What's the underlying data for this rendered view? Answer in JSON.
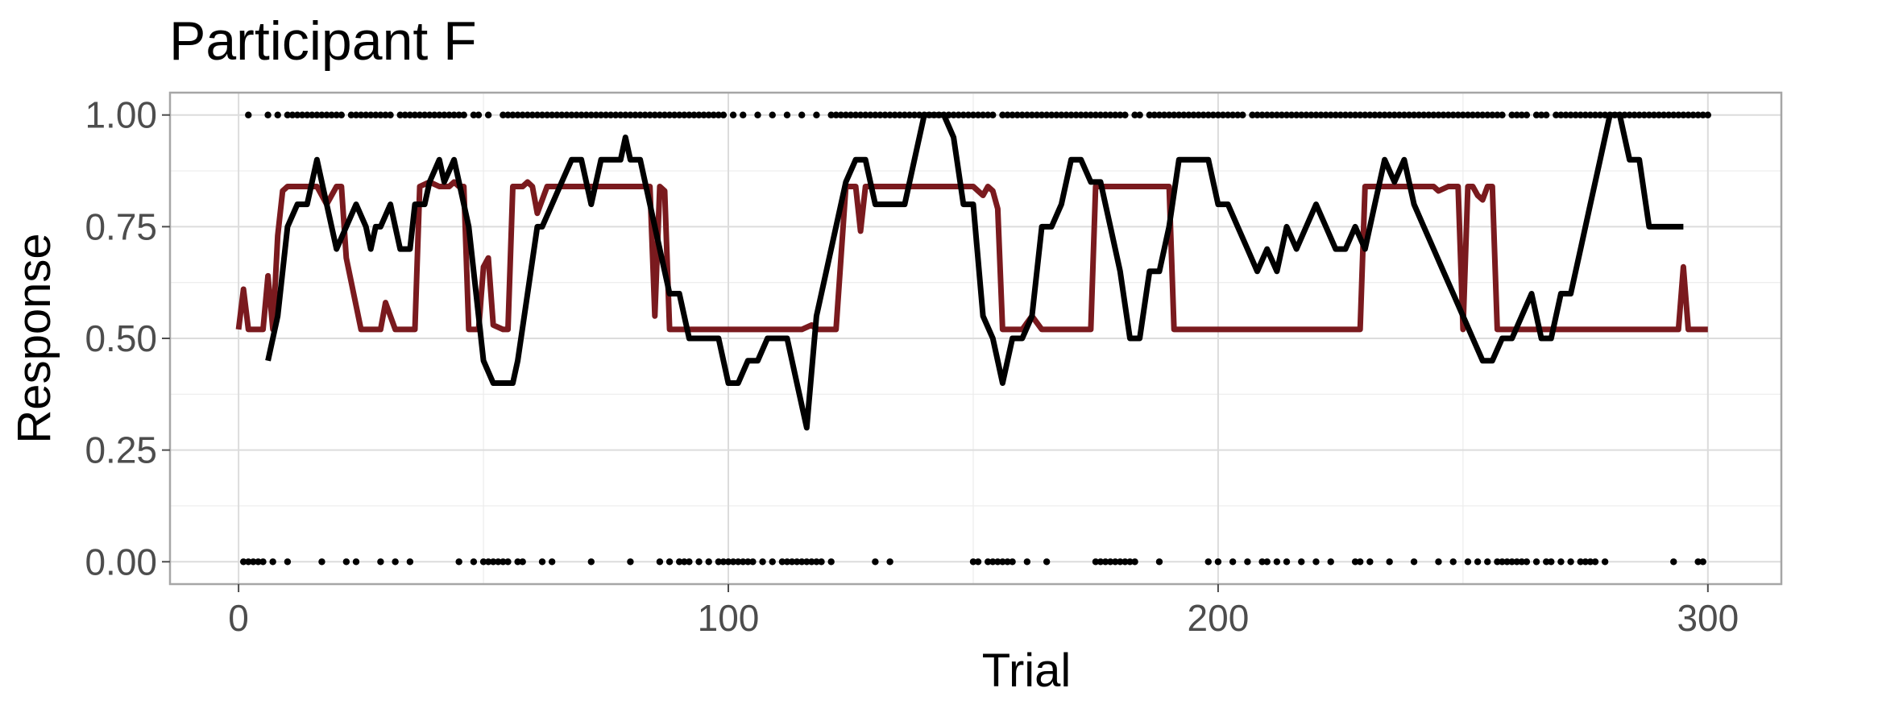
{
  "chart_data": {
    "type": "line",
    "title": "Participant F",
    "xlabel": "Trial",
    "ylabel": "Response",
    "xlim": [
      -14,
      315
    ],
    "ylim": [
      -0.05,
      1.05
    ],
    "x_ticks": [
      0,
      100,
      200,
      300
    ],
    "x_tick_labels": [
      "0",
      "100",
      "200",
      "300"
    ],
    "y_ticks": [
      0,
      0.25,
      0.5,
      0.75,
      1
    ],
    "y_tick_labels": [
      "0.00",
      "0.25",
      "0.50",
      "0.75",
      "1.00"
    ],
    "grid": true,
    "colors": {
      "model": "#7a1a1e",
      "rolling": "#000000",
      "points": "#000000",
      "grid": "#dcdcdc",
      "panel_border": "#a6a6a6"
    },
    "series": [
      {
        "type": "line",
        "x": [
          0,
          1,
          2,
          3,
          5,
          6,
          7,
          8,
          9,
          10,
          12,
          14,
          16,
          17,
          18,
          20,
          21,
          22,
          25,
          27,
          28,
          29,
          30,
          32,
          33,
          34,
          36,
          37,
          39,
          41,
          43,
          44,
          45,
          46,
          47,
          49,
          50,
          51,
          52,
          54,
          55,
          56,
          58,
          59,
          60,
          61,
          63,
          66,
          70,
          74,
          78,
          80,
          82,
          84,
          85,
          86,
          87,
          88,
          90,
          92,
          94,
          96,
          98,
          100,
          110,
          115,
          117,
          118,
          121,
          122,
          124,
          125,
          126,
          127,
          128,
          130,
          140,
          145,
          148,
          150,
          151,
          152,
          153,
          154,
          155,
          156,
          160,
          162,
          164,
          170,
          174,
          175,
          176,
          178,
          180,
          185,
          190,
          191,
          193,
          197,
          198,
          200,
          202,
          204,
          206,
          207,
          208,
          210,
          215,
          225,
          229,
          230,
          231,
          232,
          235,
          237,
          240,
          242,
          244,
          245,
          247,
          249,
          250,
          251,
          252,
          253,
          254,
          255,
          256,
          257,
          260,
          265,
          270,
          271,
          274,
          275,
          276,
          278,
          279,
          280,
          285,
          290,
          293,
          294,
          295,
          296,
          297,
          298,
          299,
          300
        ],
        "y": [
          0.52,
          0.61,
          0.52,
          0.52,
          0.52,
          0.64,
          0.52,
          0.73,
          0.83,
          0.84,
          0.84,
          0.84,
          0.84,
          0.82,
          0.8,
          0.84,
          0.84,
          0.68,
          0.52,
          0.52,
          0.52,
          0.52,
          0.58,
          0.52,
          0.52,
          0.52,
          0.52,
          0.84,
          0.85,
          0.84,
          0.84,
          0.85,
          0.84,
          0.84,
          0.52,
          0.52,
          0.66,
          0.68,
          0.53,
          0.52,
          0.52,
          0.84,
          0.84,
          0.85,
          0.84,
          0.78,
          0.84,
          0.84,
          0.84,
          0.84,
          0.84,
          0.84,
          0.84,
          0.84,
          0.55,
          0.84,
          0.83,
          0.52,
          0.52,
          0.52,
          0.52,
          0.52,
          0.52,
          0.52,
          0.52,
          0.52,
          0.53,
          0.52,
          0.52,
          0.52,
          0.84,
          0.84,
          0.84,
          0.74,
          0.84,
          0.84,
          0.84,
          0.84,
          0.84,
          0.84,
          0.83,
          0.82,
          0.84,
          0.83,
          0.79,
          0.52,
          0.52,
          0.55,
          0.52,
          0.52,
          0.52,
          0.84,
          0.84,
          0.84,
          0.84,
          0.84,
          0.84,
          0.52,
          0.52,
          0.52,
          0.52,
          0.52,
          0.52,
          0.52,
          0.52,
          0.52,
          0.52,
          0.52,
          0.52,
          0.52,
          0.52,
          0.84,
          0.84,
          0.84,
          0.84,
          0.84,
          0.84,
          0.84,
          0.84,
          0.83,
          0.84,
          0.84,
          0.52,
          0.84,
          0.84,
          0.82,
          0.81,
          0.84,
          0.84,
          0.52,
          0.52,
          0.52,
          0.52,
          0.52,
          0.52,
          0.52,
          0.52,
          0.52,
          0.52,
          0.52,
          0.52,
          0.52,
          0.52,
          0.52,
          0.66,
          0.52,
          0.52,
          0.52,
          0.52,
          0.52
        ]
      },
      {
        "type": "line",
        "x": [
          6,
          8,
          10,
          12,
          14,
          16,
          18,
          20,
          22,
          24,
          26,
          27,
          28,
          29,
          31,
          32,
          33,
          35,
          36,
          38,
          39,
          41,
          42,
          44,
          45,
          47,
          48,
          50,
          52,
          54,
          56,
          57,
          59,
          61,
          62,
          64,
          66,
          68,
          70,
          72,
          74,
          76,
          78,
          79,
          80,
          82,
          84,
          86,
          88,
          90,
          92,
          94,
          96,
          98,
          100,
          102,
          104,
          106,
          108,
          110,
          112,
          114,
          116,
          118,
          120,
          122,
          124,
          126,
          128,
          130,
          132,
          134,
          136,
          138,
          140,
          142,
          144,
          146,
          148,
          150,
          152,
          154,
          156,
          158,
          160,
          162,
          164,
          166,
          168,
          170,
          172,
          174,
          176,
          178,
          180,
          182,
          184,
          186,
          188,
          190,
          192,
          194,
          196,
          198,
          200,
          202,
          204,
          206,
          208,
          210,
          212,
          214,
          216,
          218,
          220,
          222,
          224,
          226,
          228,
          230,
          232,
          234,
          236,
          238,
          240,
          242,
          244,
          246,
          248,
          250,
          252,
          254,
          256,
          258,
          260,
          262,
          264,
          266,
          268,
          270,
          272,
          274,
          276,
          278,
          280,
          282,
          284,
          286,
          288,
          290,
          292,
          294,
          295
        ],
        "y": [
          0.45,
          0.55,
          0.75,
          0.8,
          0.8,
          0.9,
          0.8,
          0.7,
          0.75,
          0.8,
          0.75,
          0.7,
          0.75,
          0.75,
          0.8,
          0.75,
          0.7,
          0.7,
          0.8,
          0.8,
          0.85,
          0.9,
          0.85,
          0.9,
          0.85,
          0.75,
          0.65,
          0.45,
          0.4,
          0.4,
          0.4,
          0.45,
          0.6,
          0.75,
          0.75,
          0.8,
          0.85,
          0.9,
          0.9,
          0.8,
          0.9,
          0.9,
          0.9,
          0.95,
          0.9,
          0.9,
          0.8,
          0.7,
          0.6,
          0.6,
          0.5,
          0.5,
          0.5,
          0.5,
          0.4,
          0.4,
          0.45,
          0.45,
          0.5,
          0.5,
          0.5,
          0.4,
          0.3,
          0.55,
          0.65,
          0.75,
          0.85,
          0.9,
          0.9,
          0.8,
          0.8,
          0.8,
          0.8,
          0.9,
          1.0,
          1.0,
          1.0,
          0.95,
          0.8,
          0.8,
          0.55,
          0.5,
          0.4,
          0.5,
          0.5,
          0.55,
          0.75,
          0.75,
          0.8,
          0.9,
          0.9,
          0.85,
          0.85,
          0.75,
          0.65,
          0.5,
          0.5,
          0.65,
          0.65,
          0.75,
          0.9,
          0.9,
          0.9,
          0.9,
          0.8,
          0.8,
          0.75,
          0.7,
          0.65,
          0.7,
          0.65,
          0.75,
          0.7,
          0.75,
          0.8,
          0.75,
          0.7,
          0.7,
          0.75,
          0.7,
          0.8,
          0.9,
          0.85,
          0.9,
          0.8,
          0.75,
          0.7,
          0.65,
          0.6,
          0.55,
          0.5,
          0.45,
          0.45,
          0.5,
          0.5,
          0.55,
          0.6,
          0.5,
          0.5,
          0.6,
          0.6,
          0.7,
          0.8,
          0.9,
          1.0,
          1.0,
          0.9,
          0.9,
          0.75,
          0.75,
          0.75,
          0.75,
          0.75
        ]
      },
      {
        "type": "scatter",
        "points_y1_x": [
          2,
          6,
          8,
          10,
          11,
          12,
          13,
          14,
          15,
          16,
          17,
          18,
          19,
          20,
          21,
          23,
          24,
          25,
          26,
          27,
          28,
          29,
          30,
          31,
          33,
          34,
          35,
          36,
          37,
          38,
          39,
          40,
          41,
          42,
          43,
          44,
          45,
          46,
          48,
          49,
          51,
          54,
          55,
          56,
          57,
          58,
          59,
          60,
          61,
          62,
          63,
          64,
          65,
          66,
          67,
          68,
          69,
          70,
          71,
          72,
          73,
          74,
          75,
          76,
          77,
          78,
          79,
          80,
          81,
          82,
          83,
          84,
          85,
          86,
          87,
          88,
          89,
          90,
          91,
          92,
          93,
          94,
          95,
          96,
          97,
          98,
          99,
          101,
          103,
          106,
          109,
          112,
          115,
          118,
          121,
          122,
          123,
          124,
          125,
          126,
          127,
          128,
          129,
          130,
          131,
          132,
          133,
          134,
          135,
          136,
          137,
          138,
          139,
          140,
          141,
          142,
          143,
          144,
          145,
          146,
          147,
          148,
          149,
          150,
          151,
          152,
          153,
          154,
          156,
          157,
          158,
          159,
          160,
          161,
          162,
          163,
          164,
          165,
          166,
          167,
          168,
          169,
          170,
          171,
          172,
          173,
          174,
          175,
          176,
          177,
          178,
          179,
          180,
          181,
          183,
          184,
          186,
          187,
          188,
          189,
          190,
          191,
          192,
          193,
          194,
          195,
          196,
          197,
          198,
          199,
          200,
          201,
          202,
          203,
          204,
          205,
          207,
          208,
          209,
          210,
          211,
          212,
          213,
          214,
          215,
          216,
          217,
          218,
          219,
          220,
          221,
          222,
          223,
          224,
          225,
          226,
          227,
          228,
          229,
          230,
          231,
          232,
          233,
          234,
          235,
          236,
          237,
          238,
          239,
          240,
          241,
          242,
          243,
          244,
          245,
          246,
          247,
          248,
          249,
          250,
          251,
          252,
          253,
          254,
          255,
          256,
          257,
          258,
          260,
          261,
          262,
          263,
          265,
          266,
          267,
          269,
          270,
          271,
          272,
          273,
          274,
          275,
          276,
          277,
          278,
          279,
          280,
          281,
          282,
          283,
          284,
          285,
          286,
          287,
          288,
          289,
          290,
          291,
          292,
          293,
          294,
          295,
          296,
          297,
          298,
          299,
          300
        ],
        "points_y0_x": [
          1,
          2,
          3,
          4,
          5,
          7,
          10,
          17,
          22,
          24,
          29,
          32,
          35,
          45,
          48,
          50,
          51,
          52,
          53,
          54,
          55,
          57,
          58,
          62,
          64,
          72,
          80,
          86,
          88,
          90,
          91,
          92,
          94,
          96,
          98,
          99,
          100,
          101,
          102,
          103,
          104,
          105,
          107,
          109,
          111,
          112,
          113,
          114,
          115,
          116,
          117,
          118,
          119,
          121,
          130,
          133,
          150,
          151,
          153,
          154,
          155,
          156,
          157,
          158,
          161,
          165,
          175,
          176,
          177,
          178,
          179,
          180,
          181,
          182,
          183,
          188,
          198,
          200,
          203,
          206,
          209,
          210,
          212,
          214,
          217,
          220,
          223,
          228,
          229,
          231,
          235,
          240,
          245,
          248,
          251,
          253,
          255,
          257,
          258,
          259,
          260,
          261,
          262,
          263,
          265,
          267,
          268,
          270,
          272,
          274,
          275,
          276,
          277,
          279,
          293,
          298,
          299
        ]
      }
    ]
  }
}
